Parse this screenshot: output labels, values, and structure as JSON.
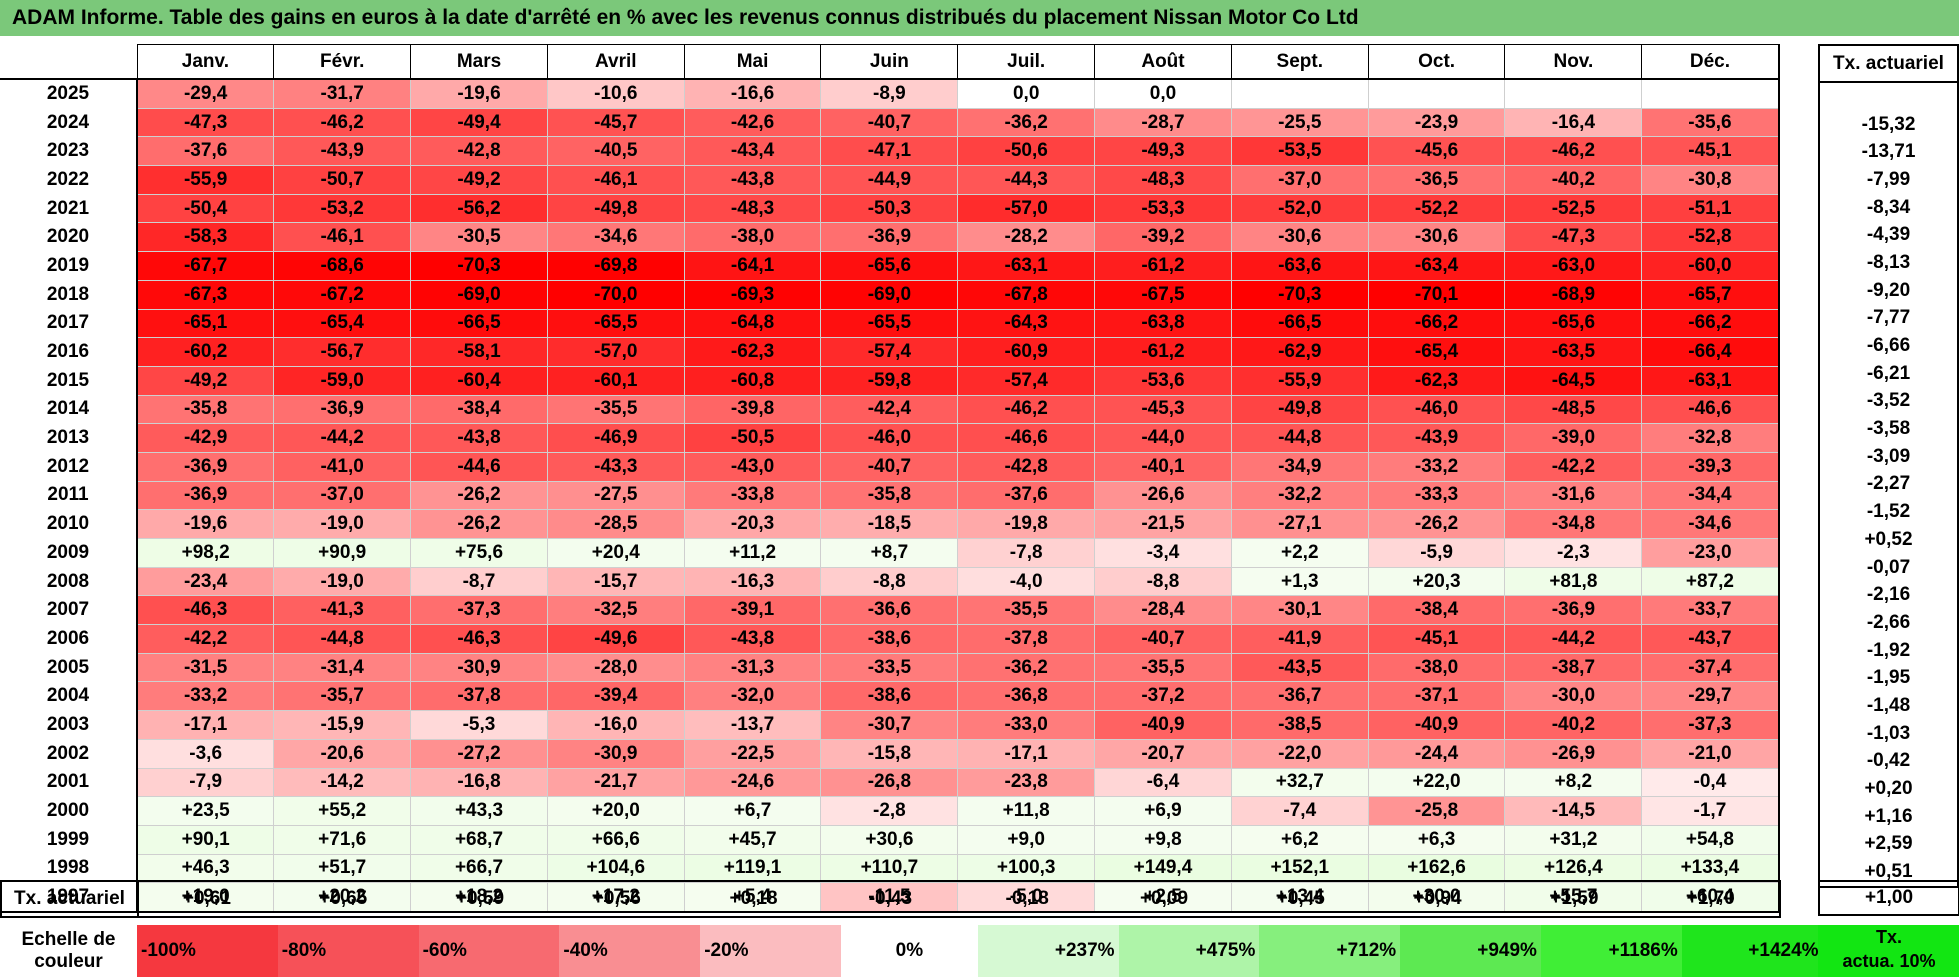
{
  "title": "ADAM Informe. Table des gains en euros à la date d'arrêté en % avec les revenus connus distribués du placement Nissan Motor Co Ltd",
  "months": [
    "Janv.",
    "Févr.",
    "Mars",
    "Avril",
    "Mai",
    "Juin",
    "Juil.",
    "Août",
    "Sept.",
    "Oct.",
    "Nov.",
    "Déc."
  ],
  "tx_header": "Tx. actuariel",
  "rows": [
    {
      "year": "2025",
      "values": [
        "-29,4",
        "-31,7",
        "-19,6",
        "-10,6",
        "-16,6",
        "-8,9",
        "0,0",
        "0,0",
        "",
        "",
        "",
        ""
      ],
      "tx": ""
    },
    {
      "year": "2024",
      "values": [
        "-47,3",
        "-46,2",
        "-49,4",
        "-45,7",
        "-42,6",
        "-40,7",
        "-36,2",
        "-28,7",
        "-25,5",
        "-23,9",
        "-16,4",
        "-35,6"
      ],
      "tx": "-15,32"
    },
    {
      "year": "2023",
      "values": [
        "-37,6",
        "-43,9",
        "-42,8",
        "-40,5",
        "-43,4",
        "-47,1",
        "-50,6",
        "-49,3",
        "-53,5",
        "-45,6",
        "-46,2",
        "-45,1"
      ],
      "tx": "-13,71"
    },
    {
      "year": "2022",
      "values": [
        "-55,9",
        "-50,7",
        "-49,2",
        "-46,1",
        "-43,8",
        "-44,9",
        "-44,3",
        "-48,3",
        "-37,0",
        "-36,5",
        "-40,2",
        "-30,8"
      ],
      "tx": "-7,99"
    },
    {
      "year": "2021",
      "values": [
        "-50,4",
        "-53,2",
        "-56,2",
        "-49,8",
        "-48,3",
        "-50,3",
        "-57,0",
        "-53,3",
        "-52,0",
        "-52,2",
        "-52,5",
        "-51,1"
      ],
      "tx": "-8,34"
    },
    {
      "year": "2020",
      "values": [
        "-58,3",
        "-46,1",
        "-30,5",
        "-34,6",
        "-38,0",
        "-36,9",
        "-28,2",
        "-39,2",
        "-30,6",
        "-30,6",
        "-47,3",
        "-52,8"
      ],
      "tx": "-4,39"
    },
    {
      "year": "2019",
      "values": [
        "-67,7",
        "-68,6",
        "-70,3",
        "-69,8",
        "-64,1",
        "-65,6",
        "-63,1",
        "-61,2",
        "-63,6",
        "-63,4",
        "-63,0",
        "-60,0"
      ],
      "tx": "-8,13"
    },
    {
      "year": "2018",
      "values": [
        "-67,3",
        "-67,2",
        "-69,0",
        "-70,0",
        "-69,3",
        "-69,0",
        "-67,8",
        "-67,5",
        "-70,3",
        "-70,1",
        "-68,9",
        "-65,7"
      ],
      "tx": "-9,20"
    },
    {
      "year": "2017",
      "values": [
        "-65,1",
        "-65,4",
        "-66,5",
        "-65,5",
        "-64,8",
        "-65,5",
        "-64,3",
        "-63,8",
        "-66,5",
        "-66,2",
        "-65,6",
        "-66,2"
      ],
      "tx": "-7,77"
    },
    {
      "year": "2016",
      "values": [
        "-60,2",
        "-56,7",
        "-58,1",
        "-57,0",
        "-62,3",
        "-57,4",
        "-60,9",
        "-61,2",
        "-62,9",
        "-65,4",
        "-63,5",
        "-66,4"
      ],
      "tx": "-6,66"
    },
    {
      "year": "2015",
      "values": [
        "-49,2",
        "-59,0",
        "-60,4",
        "-60,1",
        "-60,8",
        "-59,8",
        "-57,4",
        "-53,6",
        "-55,9",
        "-62,3",
        "-64,5",
        "-63,1"
      ],
      "tx": "-6,21"
    },
    {
      "year": "2014",
      "values": [
        "-35,8",
        "-36,9",
        "-38,4",
        "-35,5",
        "-39,8",
        "-42,4",
        "-46,2",
        "-45,3",
        "-49,8",
        "-46,0",
        "-48,5",
        "-46,6"
      ],
      "tx": "-3,52"
    },
    {
      "year": "2013",
      "values": [
        "-42,9",
        "-44,2",
        "-43,8",
        "-46,9",
        "-50,5",
        "-46,0",
        "-46,6",
        "-44,0",
        "-44,8",
        "-43,9",
        "-39,0",
        "-32,8"
      ],
      "tx": "-3,58"
    },
    {
      "year": "2012",
      "values": [
        "-36,9",
        "-41,0",
        "-44,6",
        "-43,3",
        "-43,0",
        "-40,7",
        "-42,8",
        "-40,1",
        "-34,9",
        "-33,2",
        "-42,2",
        "-39,3"
      ],
      "tx": "-3,09"
    },
    {
      "year": "2011",
      "values": [
        "-36,9",
        "-37,0",
        "-26,2",
        "-27,5",
        "-33,8",
        "-35,8",
        "-37,6",
        "-26,6",
        "-32,2",
        "-33,3",
        "-31,6",
        "-34,4"
      ],
      "tx": "-2,27"
    },
    {
      "year": "2010",
      "values": [
        "-19,6",
        "-19,0",
        "-26,2",
        "-28,5",
        "-20,3",
        "-18,5",
        "-19,8",
        "-21,5",
        "-27,1",
        "-26,2",
        "-34,8",
        "-34,6"
      ],
      "tx": "-1,52"
    },
    {
      "year": "2009",
      "values": [
        "+98,2",
        "+90,9",
        "+75,6",
        "+20,4",
        "+11,2",
        "+8,7",
        "-7,8",
        "-3,4",
        "+2,2",
        "-5,9",
        "-2,3",
        "-23,0"
      ],
      "tx": "+0,52"
    },
    {
      "year": "2008",
      "values": [
        "-23,4",
        "-19,0",
        "-8,7",
        "-15,7",
        "-16,3",
        "-8,8",
        "-4,0",
        "-8,8",
        "+1,3",
        "+20,3",
        "+81,8",
        "+87,2"
      ],
      "tx": "-0,07"
    },
    {
      "year": "2007",
      "values": [
        "-46,3",
        "-41,3",
        "-37,3",
        "-32,5",
        "-39,1",
        "-36,6",
        "-35,5",
        "-28,4",
        "-30,1",
        "-38,4",
        "-36,9",
        "-33,7"
      ],
      "tx": "-2,16"
    },
    {
      "year": "2006",
      "values": [
        "-42,2",
        "-44,8",
        "-46,3",
        "-49,6",
        "-43,8",
        "-38,6",
        "-37,8",
        "-40,7",
        "-41,9",
        "-45,1",
        "-44,2",
        "-43,7"
      ],
      "tx": "-2,66"
    },
    {
      "year": "2005",
      "values": [
        "-31,5",
        "-31,4",
        "-30,9",
        "-28,0",
        "-31,3",
        "-33,5",
        "-36,2",
        "-35,5",
        "-43,5",
        "-38,0",
        "-38,7",
        "-37,4"
      ],
      "tx": "-1,92"
    },
    {
      "year": "2004",
      "values": [
        "-33,2",
        "-35,7",
        "-37,8",
        "-39,4",
        "-32,0",
        "-38,6",
        "-36,8",
        "-37,2",
        "-36,7",
        "-37,1",
        "-30,0",
        "-29,7"
      ],
      "tx": "-1,95"
    },
    {
      "year": "2003",
      "values": [
        "-17,1",
        "-15,9",
        "-5,3",
        "-16,0",
        "-13,7",
        "-30,7",
        "-33,0",
        "-40,9",
        "-38,5",
        "-40,9",
        "-40,2",
        "-37,3"
      ],
      "tx": "-1,48"
    },
    {
      "year": "2002",
      "values": [
        "-3,6",
        "-20,6",
        "-27,2",
        "-30,9",
        "-22,5",
        "-15,8",
        "-17,1",
        "-20,7",
        "-22,0",
        "-24,4",
        "-26,9",
        "-21,0"
      ],
      "tx": "-1,03"
    },
    {
      "year": "2001",
      "values": [
        "-7,9",
        "-14,2",
        "-16,8",
        "-21,7",
        "-24,6",
        "-26,8",
        "-23,8",
        "-6,4",
        "+32,7",
        "+22,0",
        "+8,2",
        "-0,4"
      ],
      "tx": "-0,42"
    },
    {
      "year": "2000",
      "values": [
        "+23,5",
        "+55,2",
        "+43,3",
        "+20,0",
        "+6,7",
        "-2,8",
        "+11,8",
        "+6,9",
        "-7,4",
        "-25,8",
        "-14,5",
        "-1,7"
      ],
      "tx": "+0,20"
    },
    {
      "year": "1999",
      "values": [
        "+90,1",
        "+71,6",
        "+68,7",
        "+66,6",
        "+45,7",
        "+30,6",
        "+9,0",
        "+9,8",
        "+6,2",
        "+6,3",
        "+31,2",
        "+54,8"
      ],
      "tx": "+1,16"
    },
    {
      "year": "1998",
      "values": [
        "+46,3",
        "+51,7",
        "+66,7",
        "+104,6",
        "+119,1",
        "+110,7",
        "+100,3",
        "+149,4",
        "+152,1",
        "+162,6",
        "+126,4",
        "+133,4"
      ],
      "tx": "+2,59"
    },
    {
      "year": "1997",
      "values": [
        "+19,0",
        "+20,2",
        "+18,2",
        "+17,2",
        "+5,4",
        "-11,5",
        "-5,0",
        "+2,5",
        "+13,4",
        "+30,0",
        "+55,7",
        "+60,4"
      ],
      "tx": "+0,51"
    }
  ],
  "total_row": {
    "label": "Tx. actuariel",
    "values": [
      "+0,61",
      "+0,65",
      "+0,59",
      "+0,56",
      "+0,18",
      "-0,43",
      "-0,18",
      "+0,09",
      "+0,45",
      "+0,94",
      "+1,59",
      "+1,70"
    ],
    "tx": "+1,00"
  },
  "scale": {
    "label_line1": "Echelle de",
    "label_line2": "couleur",
    "items": [
      {
        "text": "-100%",
        "color": "#f5383f",
        "align": "left"
      },
      {
        "text": "-80%",
        "color": "#f65158",
        "align": "left"
      },
      {
        "text": "-60%",
        "color": "#f76a70",
        "align": "left"
      },
      {
        "text": "-40%",
        "color": "#f98e92",
        "align": "left"
      },
      {
        "text": "-20%",
        "color": "#fbbcbf",
        "align": "left"
      },
      {
        "text": "0%",
        "color": "#ffffff",
        "align": "center"
      },
      {
        "text": "+237%",
        "color": "#d6f9d3",
        "align": "right"
      },
      {
        "text": "+475%",
        "color": "#aef4a8",
        "align": "right"
      },
      {
        "text": "+712%",
        "color": "#86ef7d",
        "align": "right"
      },
      {
        "text": "+949%",
        "color": "#5de952",
        "align": "right"
      },
      {
        "text": "+1186%",
        "color": "#40ee36",
        "align": "right"
      },
      {
        "text": "+1424%",
        "color": "#1fe51c",
        "align": "right"
      }
    ],
    "tx_line1": "Tx.",
    "tx_line2": "actua. 10%"
  },
  "colors": {
    "title_bar": "#7bc87a",
    "negative_max": "#ff0000",
    "positive_tint": "#e6fae4"
  }
}
